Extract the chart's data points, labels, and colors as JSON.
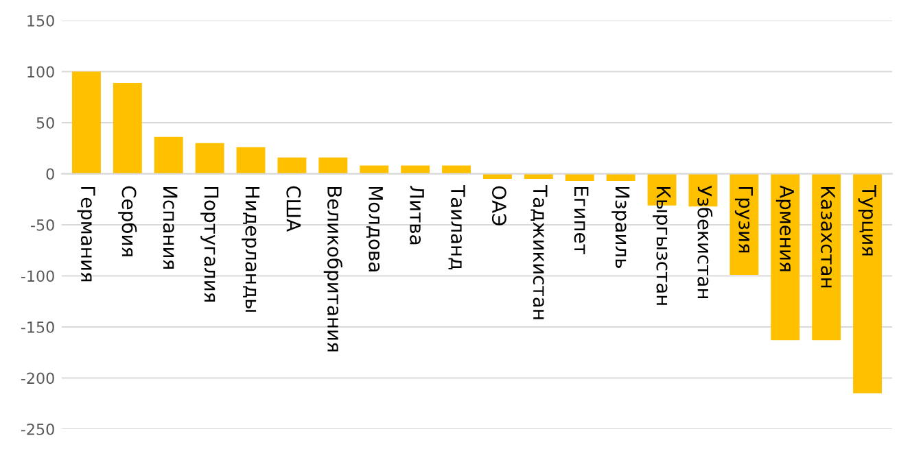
{
  "chart_data": {
    "type": "bar",
    "categories": [
      "Германия",
      "Сербия",
      "Испания",
      "Португалия",
      "Нидерланды",
      "США",
      "Великобритания",
      "Молдова",
      "Литва",
      "Таиланд",
      "ОАЭ",
      "Таджикистан",
      "Египет",
      "Израиль",
      "Кыргызстан",
      "Узбекистан",
      "Грузия",
      "Армения",
      "Казахстан",
      "Турция"
    ],
    "values": [
      100,
      89,
      36,
      30,
      26,
      16,
      16,
      8,
      8,
      8,
      -5,
      -5,
      -7,
      -7,
      -31,
      -32,
      -99,
      -163,
      -163,
      -215
    ],
    "color": "#ffc000",
    "ylim": [
      -250,
      150
    ],
    "yticks": [
      -250,
      -200,
      -150,
      -100,
      -50,
      0,
      50,
      100,
      150
    ],
    "grid": "y"
  }
}
